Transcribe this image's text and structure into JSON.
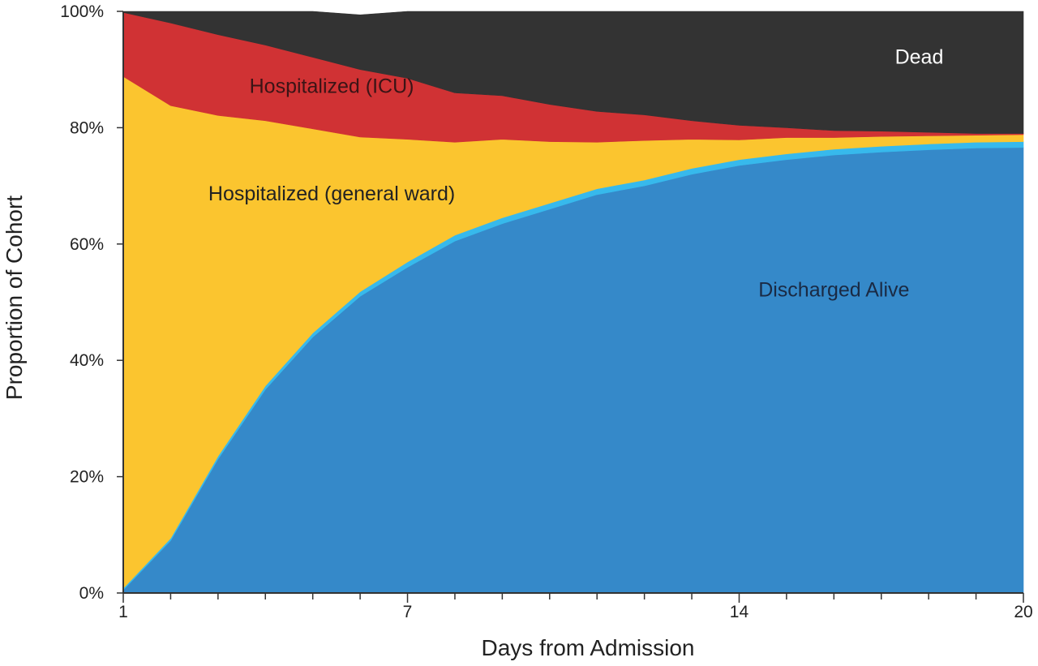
{
  "chart_data": {
    "type": "area",
    "stacked": true,
    "xlabel": "Days from Admission",
    "ylabel": "Proportion of Cohort",
    "xlim": [
      1,
      20
    ],
    "ylim": [
      0,
      100
    ],
    "x_ticks": [
      1,
      7,
      14,
      20
    ],
    "x_minor_ticks": [
      1,
      2,
      3,
      4,
      5,
      6,
      7,
      8,
      9,
      10,
      11,
      12,
      13,
      14,
      15,
      16,
      17,
      18,
      19,
      20
    ],
    "y_ticks": [
      0,
      20,
      40,
      60,
      80,
      100
    ],
    "y_tick_labels": [
      "0%",
      "20%",
      "40%",
      "60%",
      "80%",
      "100%"
    ],
    "x": [
      1,
      2,
      3,
      4,
      5,
      6,
      7,
      8,
      9,
      10,
      11,
      12,
      13,
      14,
      15,
      16,
      17,
      18,
      19,
      20
    ],
    "series": [
      {
        "name": "Discharged Alive",
        "color": "#3589c9",
        "label_position": [
          16,
          51
        ],
        "label_color": "#1a2a44",
        "values": [
          0.5,
          9,
          23,
          35,
          44,
          51,
          56,
          60.5,
          63.5,
          66,
          68.5,
          70,
          72,
          73.5,
          74.5,
          75.3,
          75.8,
          76.2,
          76.5,
          76.6
        ]
      },
      {
        "name": "",
        "color": "#37b9ec",
        "values": [
          0.3,
          0.4,
          0.5,
          0.6,
          0.7,
          0.8,
          0.9,
          1.0,
          1.0,
          1.0,
          1.0,
          1.0,
          1.0,
          1.0,
          1.0,
          1.0,
          1.0,
          1.0,
          1.0,
          1.0
        ]
      },
      {
        "name": "Hospitalized (general ward)",
        "color": "#fbc52f",
        "label_position": [
          5.4,
          67.5
        ],
        "label_color": "#222222",
        "values": [
          88,
          74.4,
          58.6,
          45.6,
          35.1,
          26.6,
          21.1,
          16,
          13.5,
          10.6,
          8,
          6.8,
          5,
          3.4,
          2.8,
          2,
          1.7,
          1.4,
          1.2,
          1.2
        ]
      },
      {
        "name": "Hospitalized (ICU)",
        "color": "#d03234",
        "label_position": [
          5.4,
          86
        ],
        "label_color": "#3b1416",
        "values": [
          11,
          14.2,
          13.9,
          13,
          12.3,
          11.6,
          10.5,
          8.5,
          7.5,
          6.4,
          5.3,
          4.4,
          3.2,
          2.5,
          1.7,
          1.2,
          0.9,
          0.6,
          0.3,
          0.2
        ]
      },
      {
        "name": "Dead",
        "color": "#333333",
        "label_position": [
          17.8,
          91
        ],
        "label_color": "#ffffff",
        "values": [
          0.2,
          2,
          4,
          5.8,
          7.9,
          9.4,
          11.5,
          14,
          14.5,
          16,
          17.2,
          17.8,
          18.8,
          19.6,
          20,
          20.5,
          20.6,
          20.8,
          21,
          21
        ]
      }
    ]
  }
}
